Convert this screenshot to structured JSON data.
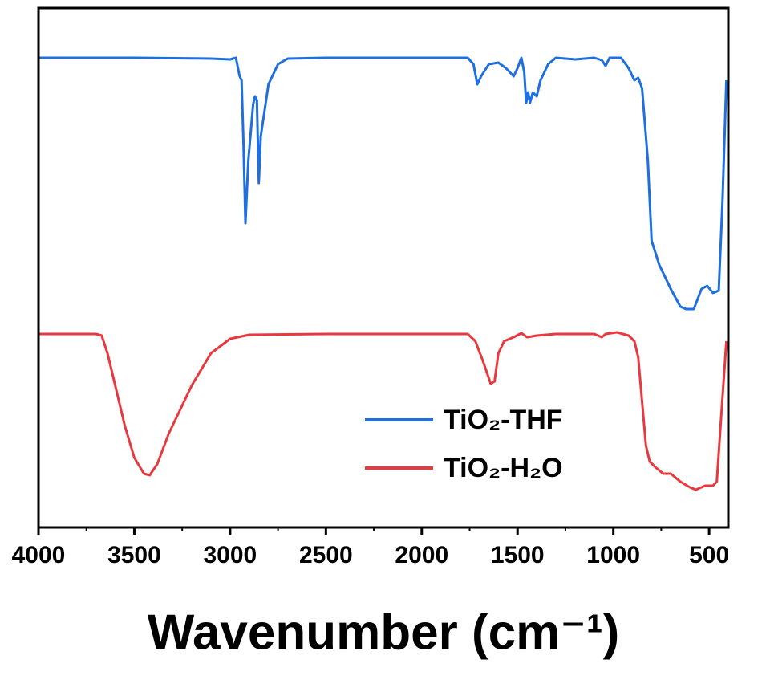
{
  "chart_data": {
    "type": "line",
    "xlabel": "Wavenumber (cm⁻¹)",
    "xlim": [
      4000,
      400
    ],
    "xticks": [
      4000,
      3500,
      3000,
      2500,
      2000,
      1500,
      1000,
      500
    ],
    "xminorticks": [
      3750,
      3250,
      2750,
      2250,
      1750,
      1250,
      750
    ],
    "ylim": [
      0,
      647
    ],
    "legend": "lower right",
    "series": [
      {
        "name": "TiO₂-THF",
        "color": "#1f6fe0",
        "x": [
          4000,
          3500,
          3100,
          3000,
          2970,
          2950,
          2940,
          2930,
          2920,
          2905,
          2880,
          2870,
          2860,
          2850,
          2840,
          2800,
          2750,
          2700,
          2500,
          2000,
          1760,
          1730,
          1710,
          1690,
          1650,
          1600,
          1560,
          1520,
          1500,
          1480,
          1465,
          1455,
          1445,
          1435,
          1420,
          1400,
          1380,
          1340,
          1300,
          1200,
          1100,
          1060,
          1040,
          1020,
          1000,
          960,
          920,
          890,
          870,
          850,
          820,
          800,
          760,
          700,
          650,
          620,
          580,
          540,
          510,
          480,
          450,
          430,
          410
        ],
        "values": [
          585,
          585,
          584,
          583,
          585,
          562,
          557,
          477,
          379,
          457,
          527,
          537,
          532,
          429,
          487,
          552,
          577,
          584,
          585,
          585,
          585,
          577,
          552,
          562,
          577,
          579,
          572,
          562,
          572,
          585,
          567,
          529,
          542,
          529,
          542,
          537,
          557,
          577,
          585,
          583,
          585,
          582,
          575,
          585,
          585,
          585,
          572,
          557,
          560,
          547,
          457,
          357,
          327,
          297,
          275,
          272,
          272,
          297,
          301,
          292,
          295,
          407,
          557
        ]
      },
      {
        "name": "TiO₂-H₂O",
        "color": "#e8393f",
        "x": [
          4000,
          3700,
          3670,
          3640,
          3600,
          3550,
          3500,
          3450,
          3420,
          3380,
          3320,
          3270,
          3200,
          3100,
          3000,
          2900,
          2500,
          2000,
          1760,
          1720,
          1680,
          1640,
          1620,
          1600,
          1570,
          1520,
          1480,
          1450,
          1400,
          1300,
          1100,
          1060,
          1040,
          980,
          920,
          890,
          870,
          850,
          830,
          810,
          780,
          740,
          700,
          650,
          600,
          570,
          520,
          480,
          460,
          440,
          410
        ],
        "values": [
          241,
          241,
          239,
          217,
          177,
          127,
          87,
          67,
          65,
          79,
          117,
          142,
          177,
          217,
          235,
          240,
          241,
          241,
          241,
          232,
          207,
          179,
          182,
          217,
          232,
          237,
          242,
          237,
          239,
          241,
          241,
          237,
          241,
          243,
          239,
          232,
          212,
          157,
          102,
          82,
          75,
          67,
          67,
          57,
          50,
          47,
          52,
          52,
          57,
          127,
          232
        ]
      }
    ]
  }
}
